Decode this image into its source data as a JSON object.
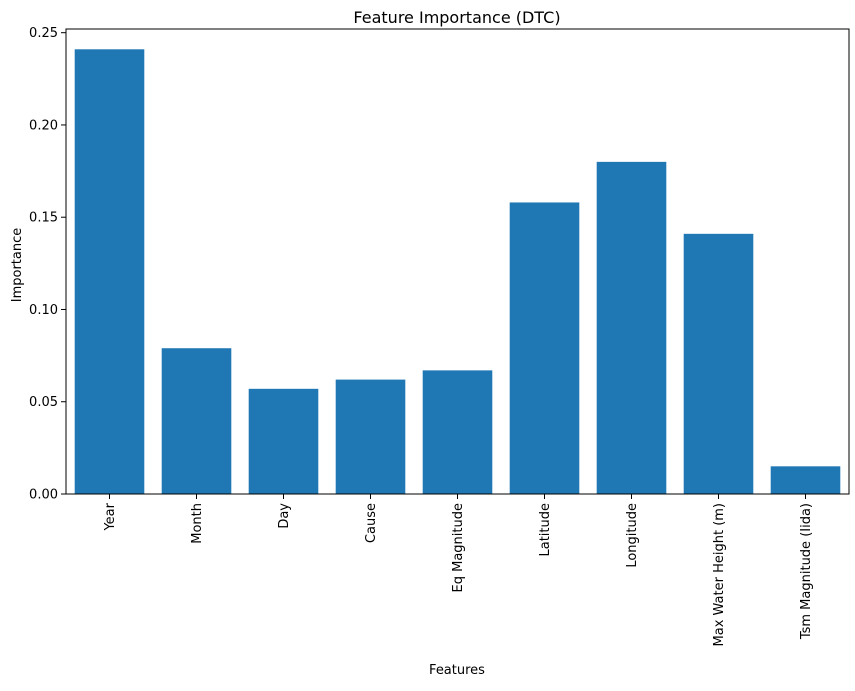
{
  "chart_data": {
    "type": "bar",
    "title": "Feature Importance (DTC)",
    "xlabel": "Features",
    "ylabel": "Importance",
    "categories": [
      "Year",
      "Month",
      "Day",
      "Cause",
      "Eq Magnitude",
      "Latitude",
      "Longitude",
      "Max Water Height (m)",
      "Tsm Magnitude (Iida)"
    ],
    "values": [
      0.241,
      0.079,
      0.057,
      0.062,
      0.067,
      0.158,
      0.18,
      0.141,
      0.015
    ],
    "ylim": [
      0,
      0.252
    ],
    "yticks": [
      0.0,
      0.05,
      0.1,
      0.15,
      0.2,
      0.25
    ],
    "ytick_labels": [
      "0.00",
      "0.05",
      "0.10",
      "0.15",
      "0.20",
      "0.25"
    ],
    "bar_color": "#1f77b4",
    "grid": false,
    "legend": false
  }
}
